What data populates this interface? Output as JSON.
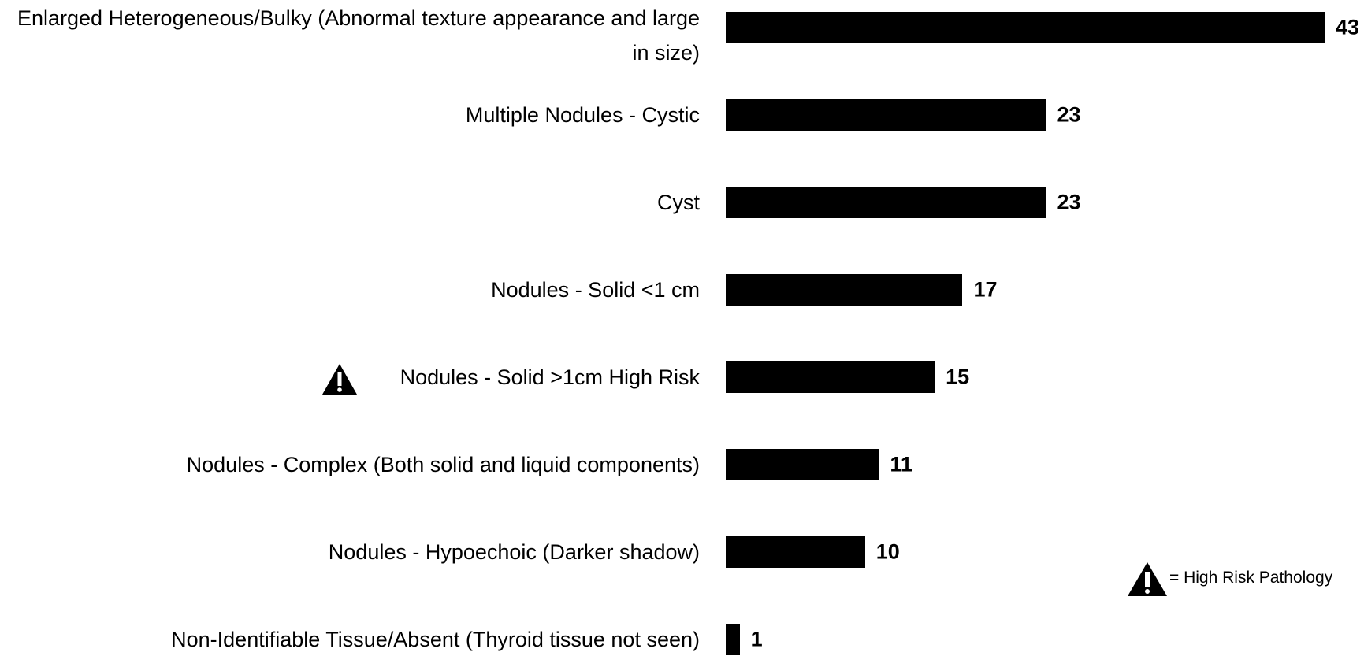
{
  "chart_data": {
    "type": "bar",
    "orientation": "horizontal",
    "categories": [
      "Enlarged Heterogeneous/Bulky (Abnormal texture appearance and large in size)",
      "Multiple Nodules - Cystic",
      "Cyst",
      "Nodules - Solid <1 cm",
      "Nodules - Solid >1cm High Risk",
      "Nodules - Complex (Both solid and liquid components)",
      "Nodules - Hypoechoic (Darker shadow)",
      "Non-Identifiable Tissue/Absent (Thyroid tissue not seen)"
    ],
    "values": [
      43,
      23,
      23,
      17,
      15,
      11,
      10,
      1
    ],
    "color": "#000000",
    "legend_text": "= High Risk Pathology"
  }
}
